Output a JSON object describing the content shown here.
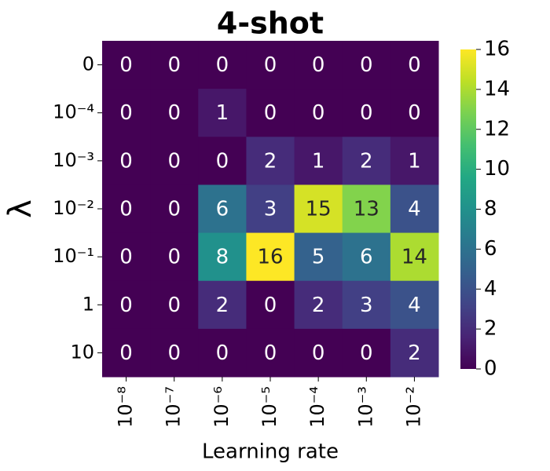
{
  "chart_data": {
    "type": "heatmap",
    "title": "4-shot",
    "x_label": "Learning rate",
    "y_label": "λ",
    "x_categories": [
      "10⁻⁸",
      "10⁻⁷",
      "10⁻⁶",
      "10⁻⁵",
      "10⁻⁴",
      "10⁻³",
      "10⁻²"
    ],
    "y_categories": [
      "0",
      "10⁻⁴",
      "10⁻³",
      "10⁻²",
      "10⁻¹",
      "1",
      "10"
    ],
    "values": [
      [
        0,
        0,
        0,
        0,
        0,
        0,
        0
      ],
      [
        0,
        0,
        1,
        0,
        0,
        0,
        0
      ],
      [
        0,
        0,
        0,
        2,
        1,
        2,
        1
      ],
      [
        0,
        0,
        6,
        3,
        15,
        13,
        4
      ],
      [
        0,
        0,
        8,
        16,
        5,
        6,
        14
      ],
      [
        0,
        0,
        2,
        0,
        2,
        3,
        4
      ],
      [
        0,
        0,
        0,
        0,
        0,
        0,
        2
      ]
    ],
    "colormap": "viridis",
    "clim": [
      0,
      16
    ],
    "cticks": [
      0,
      2,
      4,
      6,
      8,
      10,
      12,
      14,
      16
    ]
  }
}
